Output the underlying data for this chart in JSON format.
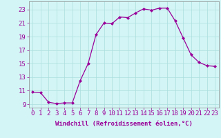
{
  "x": [
    0,
    1,
    2,
    3,
    4,
    5,
    6,
    7,
    8,
    9,
    10,
    11,
    12,
    13,
    14,
    15,
    16,
    17,
    18,
    19,
    20,
    21,
    22,
    23
  ],
  "y": [
    10.8,
    10.7,
    9.3,
    9.1,
    9.2,
    9.2,
    12.5,
    15.0,
    19.3,
    21.0,
    20.9,
    21.9,
    21.8,
    22.5,
    23.1,
    22.9,
    23.2,
    23.2,
    21.3,
    18.8,
    16.3,
    15.2,
    14.7,
    14.6
  ],
  "line_color": "#990099",
  "marker": "D",
  "marker_size": 2,
  "background_color": "#d4f5f5",
  "grid_color": "#aadddd",
  "xlabel": "Windchill (Refroidissement éolien,°C)",
  "xlabel_fontsize": 6.5,
  "xtick_labels": [
    "0",
    "1",
    "2",
    "3",
    "4",
    "5",
    "6",
    "7",
    "8",
    "9",
    "10",
    "11",
    "12",
    "13",
    "14",
    "15",
    "16",
    "17",
    "18",
    "19",
    "20",
    "21",
    "22",
    "23"
  ],
  "ytick_labels": [
    "9",
    "11",
    "13",
    "15",
    "17",
    "19",
    "21",
    "23"
  ],
  "ytick_values": [
    9,
    11,
    13,
    15,
    17,
    19,
    21,
    23
  ],
  "ylim": [
    8.5,
    24.2
  ],
  "xlim": [
    -0.5,
    23.5
  ],
  "tick_fontsize": 6.5,
  "border_color": "#aaaaaa",
  "linewidth": 0.9
}
